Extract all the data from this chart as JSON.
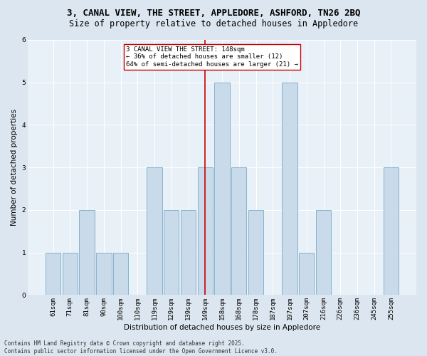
{
  "title": "3, CANAL VIEW, THE STREET, APPLEDORE, ASHFORD, TN26 2BQ",
  "subtitle": "Size of property relative to detached houses in Appledore",
  "xlabel": "Distribution of detached houses by size in Appledore",
  "ylabel": "Number of detached properties",
  "categories": [
    "61sqm",
    "71sqm",
    "81sqm",
    "90sqm",
    "100sqm",
    "110sqm",
    "119sqm",
    "129sqm",
    "139sqm",
    "149sqm",
    "158sqm",
    "168sqm",
    "178sqm",
    "187sqm",
    "197sqm",
    "207sqm",
    "216sqm",
    "226sqm",
    "236sqm",
    "245sqm",
    "255sqm"
  ],
  "values": [
    1,
    1,
    2,
    1,
    1,
    0,
    3,
    2,
    2,
    3,
    5,
    3,
    2,
    0,
    5,
    1,
    2,
    0,
    0,
    0,
    3
  ],
  "bar_color": "#c9daea",
  "bar_edge_color": "#7aaac8",
  "reference_line_index": 9,
  "reference_line_color": "#cc0000",
  "annotation_text": "3 CANAL VIEW THE STREET: 148sqm\n← 36% of detached houses are smaller (12)\n64% of semi-detached houses are larger (21) →",
  "annotation_box_color": "#ffffff",
  "annotation_box_edge_color": "#cc0000",
  "ylim": [
    0,
    6
  ],
  "yticks": [
    0,
    1,
    2,
    3,
    4,
    5,
    6
  ],
  "footer_text": "Contains HM Land Registry data © Crown copyright and database right 2025.\nContains public sector information licensed under the Open Government Licence v3.0.",
  "background_color": "#dce6f0",
  "plot_background_color": "#e8f0f8",
  "grid_color": "#ffffff",
  "title_fontsize": 9,
  "subtitle_fontsize": 8.5,
  "axis_label_fontsize": 7.5,
  "tick_fontsize": 6.5,
  "annotation_fontsize": 6.5,
  "footer_fontsize": 5.5
}
